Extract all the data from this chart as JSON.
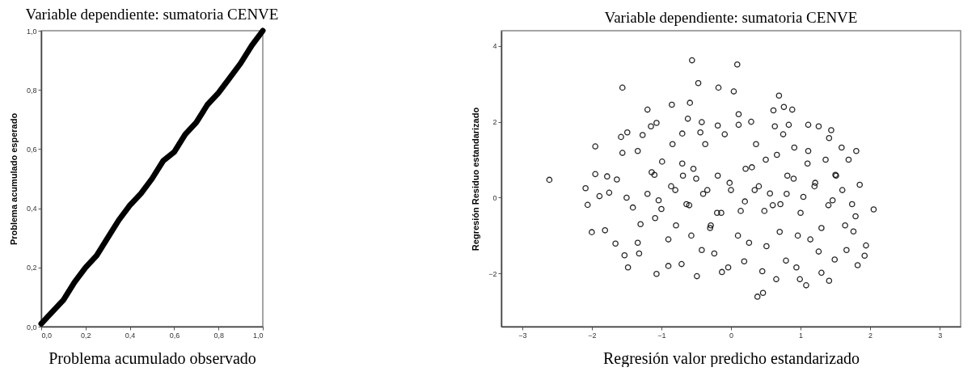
{
  "chart_data": [
    {
      "type": "line",
      "title": "Variable dependiente: sumatoria CENVE",
      "xlabel": "Problema acumulado observado",
      "ylabel": "Problema acumulado esperado",
      "color": "#000000",
      "x": [
        0,
        0.05,
        0.1,
        0.15,
        0.2,
        0.25,
        0.3,
        0.35,
        0.4,
        0.45,
        0.5,
        0.55,
        0.6,
        0.65,
        0.7,
        0.75,
        0.8,
        0.85,
        0.9,
        0.95,
        1
      ],
      "values": [
        0.01,
        0.05,
        0.09,
        0.15,
        0.2,
        0.24,
        0.3,
        0.36,
        0.41,
        0.45,
        0.5,
        0.56,
        0.59,
        0.65,
        0.69,
        0.75,
        0.79,
        0.84,
        0.89,
        0.95,
        1
      ],
      "xlim": [
        0,
        1
      ],
      "ylim": [
        0,
        1
      ],
      "xticks": [
        {
          "value": 0,
          "label": "0,0"
        },
        {
          "value": 0.2,
          "label": "0,2"
        },
        {
          "value": 0.4,
          "label": "0,4"
        },
        {
          "value": 0.6,
          "label": "0,6"
        },
        {
          "value": 0.8,
          "label": "0,8"
        },
        {
          "value": 1,
          "label": "1,0"
        }
      ],
      "yticks": [
        {
          "value": 0,
          "label": "0,0"
        },
        {
          "value": 0.2,
          "label": "0,2"
        },
        {
          "value": 0.4,
          "label": "0,4"
        },
        {
          "value": 0.6,
          "label": "0,6"
        },
        {
          "value": 0.8,
          "label": "0,8"
        },
        {
          "value": 1,
          "label": "1,0"
        }
      ],
      "grid": false
    },
    {
      "type": "scatter",
      "title": "Variable dependiente: sumatoria CENVE",
      "xlabel": "Regresión valor predicho estandarizado",
      "ylabel": "Regresión Residuo estandarizado",
      "color": "#000000",
      "marker": "circle",
      "x": [
        -2.61,
        -2.09,
        -2.06,
        -2.0,
        -1.95,
        -1.95,
        -1.89,
        -1.81,
        -1.78,
        -1.75,
        -1.66,
        -1.64,
        -1.58,
        -1.56,
        -1.56,
        -1.53,
        -1.48,
        -1.49,
        -1.41,
        -1.34,
        -1.32,
        -1.34,
        -1.27,
        -1.2,
        -1.15,
        -1.07,
        -1.07,
        -1.14,
        -1.04,
        -1.09,
        -0.99,
        -0.9,
        -0.85,
        -0.84,
        -0.86,
        -0.79,
        -0.71,
        -0.7,
        -0.69,
        -0.64,
        -0.62,
        -0.59,
        -0.56,
        -0.57,
        -0.54,
        -0.49,
        -0.47,
        -0.44,
        -0.42,
        -0.42,
        -0.37,
        -0.34,
        -0.29,
        -0.24,
        -0.19,
        -0.18,
        -0.19,
        -0.14,
        -0.13,
        -0.09,
        -0.04,
        -0.02,
        0.04,
        0.09,
        0.11,
        0.11,
        0.14,
        0.19,
        0.21,
        0.26,
        0.29,
        0.34,
        0.36,
        0.38,
        0.45,
        0.46,
        0.48,
        0.51,
        0.56,
        0.61,
        0.63,
        0.65,
        0.66,
        0.69,
        0.71,
        0.75,
        0.76,
        0.79,
        0.81,
        0.83,
        0.88,
        0.91,
        0.94,
        0.96,
        0.99,
        1.04,
        1.08,
        1.11,
        1.11,
        1.14,
        1.21,
        1.26,
        1.26,
        1.3,
        1.36,
        1.41,
        1.44,
        1.41,
        1.46,
        1.49,
        1.51,
        1.59,
        1.64,
        1.66,
        1.69,
        1.74,
        1.76,
        1.8,
        1.82,
        1.79,
        1.85,
        1.94,
        1.92,
        2.05,
        -1.2,
        -1.0,
        -0.8,
        -0.6,
        -0.4,
        -0.2,
        0.0,
        0.2,
        0.4,
        0.6,
        0.8,
        1.0,
        1.2,
        1.4,
        -1.1,
        -0.7,
        -0.3,
        0.3,
        0.7,
        1.1,
        1.3,
        -1.3,
        -0.9,
        0.1,
        0.5,
        0.9,
        -0.5,
        1.5,
        -1.5,
        1.6
      ],
      "values": [
        0.47,
        0.25,
        -0.19,
        -0.91,
        1.35,
        0.62,
        0.04,
        -0.86,
        0.56,
        0.13,
        -1.21,
        0.48,
        1.6,
        2.9,
        1.18,
        -1.52,
        -1.84,
        1.72,
        -0.26,
        -1.19,
        -1.47,
        1.23,
        1.65,
        2.32,
        1.88,
        1.97,
        -2.01,
        0.67,
        -0.07,
        -0.54,
        0.95,
        -1.8,
        2.45,
        1.41,
        0.3,
        -0.73,
        -1.75,
        1.69,
        0.58,
        -0.17,
        2.08,
        2.5,
        3.62,
        -1.0,
        0.76,
        -2.07,
        3.02,
        1.72,
        1.99,
        -1.38,
        1.41,
        0.2,
        -0.73,
        -1.47,
        1.9,
        2.9,
        0.58,
        -0.4,
        -1.96,
        1.67,
        -1.84,
        0.39,
        2.8,
        3.51,
        2.2,
        1.92,
        -0.35,
        -1.68,
        0.76,
        -1.19,
        2.0,
        0.2,
        1.41,
        -2.61,
        -1.94,
        -2.51,
        -0.35,
        -1.28,
        0.11,
        2.3,
        1.88,
        -2.15,
        1.13,
        2.69,
        -0.17,
        1.67,
        2.39,
        -1.66,
        0.58,
        1.92,
        2.32,
        1.32,
        -1.84,
        -1.0,
        -2.15,
        0.02,
        -2.31,
        1.92,
        1.23,
        -1.1,
        0.39,
        1.88,
        -1.42,
        -1.98,
        1.0,
        -2.19,
        1.78,
        1.57,
        -0.07,
        -1.63,
        0.58,
        1.32,
        -0.73,
        -1.38,
        1.0,
        -0.17,
        -0.89,
        1.23,
        -1.78,
        -0.49,
        0.34,
        -1.26,
        -1.53,
        -0.31,
        0.1,
        -0.3,
        0.2,
        -0.2,
        0.1,
        -0.4,
        0.2,
        -0.1,
        0.3,
        -0.2,
        0.1,
        -0.4,
        0.3,
        -0.2,
        0.6,
        0.9,
        -0.8,
        0.8,
        -0.9,
        0.9,
        -0.8,
        -0.7,
        -1.1,
        -1.0,
        1.0,
        0.5,
        0.5,
        0.6,
        0.0,
        0.2
      ],
      "xlim": [
        -3.3,
        3.3
      ],
      "ylim": [
        -3.4,
        4.4
      ],
      "xticks": [
        -3,
        -2,
        -1,
        0,
        1,
        2,
        3
      ],
      "yticks": [
        -2,
        0,
        2,
        4
      ],
      "grid": false
    }
  ]
}
